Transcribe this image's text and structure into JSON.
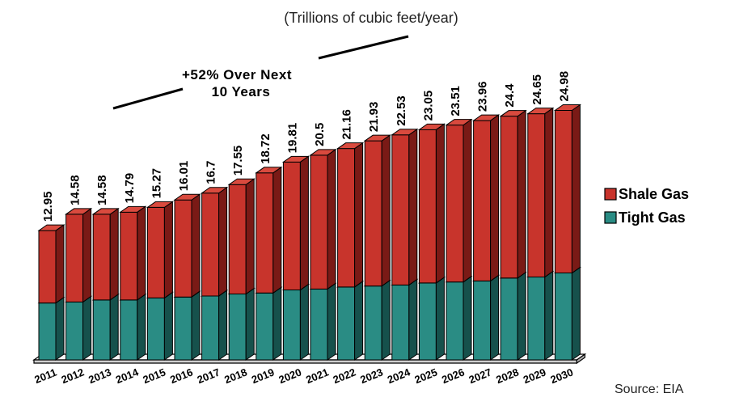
{
  "colors": {
    "shale_front": "#c8342c",
    "shale_side": "#7a1a16",
    "shale_top": "#d94a3e",
    "tight_front": "#2a8c84",
    "tight_side": "#16514c",
    "tight_top": "#3aa89e",
    "outline": "#000000",
    "floor": "#f4f4f4"
  },
  "chart_data": {
    "type": "bar",
    "stacked": true,
    "three_d": true,
    "subtitle": "(Trillions of cubic feet/year)",
    "annotation": {
      "line1": "+52%  Over Next",
      "line2": "10 Years"
    },
    "source": "Source: EIA",
    "categories": [
      "2011",
      "2012",
      "2013",
      "2014",
      "2015",
      "2016",
      "2017",
      "2018",
      "2019",
      "2020",
      "2021",
      "2022",
      "2023",
      "2024",
      "2025",
      "2026",
      "2027",
      "2028",
      "2029",
      "2030"
    ],
    "totals": [
      12.95,
      14.58,
      14.58,
      14.79,
      15.27,
      16.01,
      16.7,
      17.55,
      18.72,
      19.81,
      20.5,
      21.16,
      21.93,
      22.53,
      23.05,
      23.51,
      23.96,
      24.4,
      24.65,
      24.98
    ],
    "total_labels": [
      "12.95",
      "14.58",
      "14.58",
      "14.79",
      "15.27",
      "16.01",
      "16.7",
      "17.55",
      "18.72",
      "19.81",
      "20.5",
      "21.16",
      "21.93",
      "22.53",
      "23.05",
      "23.51",
      "23.96",
      "24.4",
      "24.65",
      "24.98"
    ],
    "series": [
      {
        "name": "Tight Gas",
        "color": "#2a8c84",
        "values": [
          5.7,
          5.8,
          6.0,
          6.0,
          6.2,
          6.3,
          6.4,
          6.6,
          6.7,
          7.0,
          7.1,
          7.3,
          7.4,
          7.5,
          7.7,
          7.8,
          7.9,
          8.2,
          8.3,
          8.7
        ]
      },
      {
        "name": "Shale Gas",
        "color": "#c8342c",
        "values": [
          7.25,
          8.78,
          8.58,
          8.79,
          9.07,
          9.71,
          10.3,
          10.95,
          12.02,
          12.81,
          13.4,
          13.86,
          14.53,
          15.03,
          15.35,
          15.71,
          16.06,
          16.2,
          16.35,
          16.28
        ]
      }
    ],
    "legend": {
      "position": "right",
      "items": [
        {
          "label": "Shale Gas",
          "key": "shale"
        },
        {
          "label": "Tight Gas",
          "key": "tight"
        }
      ]
    },
    "ylim": [
      0,
      25
    ],
    "grid": false
  }
}
